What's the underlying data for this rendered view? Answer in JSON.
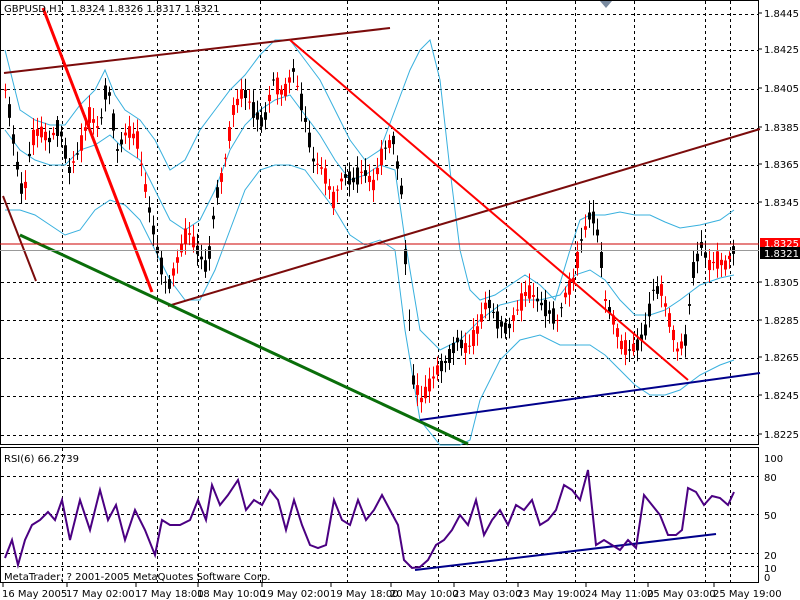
{
  "header": {
    "symbol_label": "GBPUSD,H1",
    "ohlc_label": "1.8324 1.8326 1.8317 1.8321"
  },
  "rsi": {
    "label": "RSI(6) 66.2739",
    "levels": [
      "100",
      "80",
      "50",
      "20",
      "10",
      "0"
    ]
  },
  "footer": {
    "copyright": "MetaTrader, ? 2001-2005 MetaQuotes Software Corp."
  },
  "colors": {
    "up_candle": "#000000",
    "down_candle": "#ff0000",
    "bollinger": "#38b0de",
    "rsi_line": "#4b0082",
    "current_price_bg": "#ff0000",
    "current_price_line": "#cc0000",
    "trend_maroon": "#7b0b0b",
    "trend_red": "#ff0000",
    "trend_green": "#0a6e0a",
    "trend_blue": "#00008b"
  },
  "chart_data": {
    "type": "candlestick",
    "price_axis_ticks": [
      "1.8445",
      "1.8425",
      "1.8405",
      "1.8385",
      "1.8365",
      "1.8345",
      "1.8325",
      "1.8305",
      "1.8285",
      "1.8265",
      "1.8245",
      "1.8225"
    ],
    "price_range": [
      1.8215,
      1.8455
    ],
    "current_prices": [
      "1.8325",
      "1.8321"
    ],
    "time_axis_labels": [
      "16 May 2005",
      "17 May 02:00",
      "17 May 18:00",
      "18 May 10:00",
      "19 May 02:00",
      "19 May 18:00",
      "20 May 10:00",
      "23 May 03:00",
      "23 May 19:00",
      "24 May 11:00",
      "25 May 03:00",
      "25 May 19:00"
    ]
  }
}
